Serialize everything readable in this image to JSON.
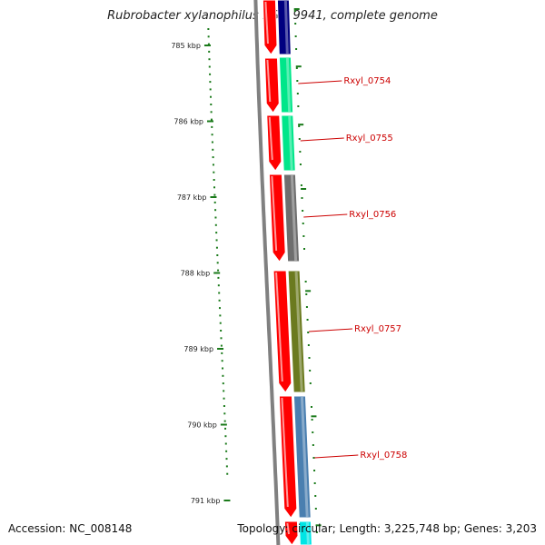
{
  "title": "Rubrobacter xylanophilus DSM 9941, complete genome",
  "footer": {
    "accession": "Accession: NC_008148",
    "summary": "Topology: circular; Length: 3,225,748 bp; Genes: 3,203"
  },
  "ruler": {
    "labels": [
      "785 kbp",
      "786 kbp",
      "787 kbp",
      "788 kbp",
      "789 kbp",
      "790 kbp",
      "791 kbp"
    ]
  },
  "genes": [
    {
      "label": "",
      "color": "#000080"
    },
    {
      "label": "Rxyl_0754",
      "color": "#00e68a"
    },
    {
      "label": "Rxyl_0755",
      "color": "#00e68a"
    },
    {
      "label": "Rxyl_0756",
      "color": "#6e6e6e"
    },
    {
      "label": "Rxyl_0757",
      "color": "#6b7a1f"
    },
    {
      "label": "Rxyl_0758",
      "color": "#4a7fb0"
    },
    {
      "label": "",
      "color": "#00e5e5"
    }
  ],
  "colors": {
    "cds": "#ff0000",
    "backbone": "#808080",
    "ticks": "#1a7a1a",
    "gene_label": "#cc0000"
  }
}
